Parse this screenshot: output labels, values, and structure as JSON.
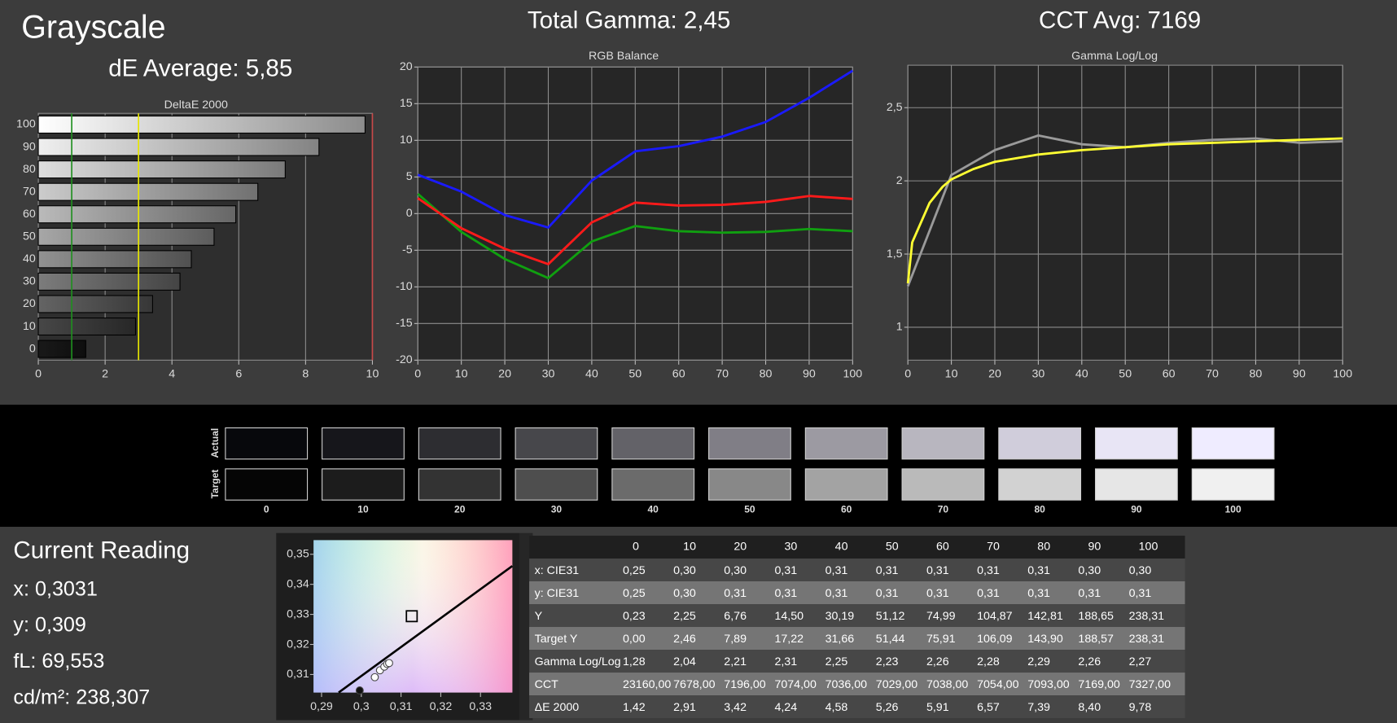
{
  "header": {
    "title": "Grayscale",
    "de_average": "dE Average: 5,85",
    "total_gamma": "Total Gamma: 2,45",
    "cct_avg": "CCT Avg: 7169"
  },
  "chart_data": [
    {
      "type": "hbar",
      "title": "DeltaE 2000",
      "categories": [
        0,
        10,
        20,
        30,
        40,
        50,
        60,
        70,
        80,
        90,
        100
      ],
      "values": [
        1.42,
        2.91,
        3.42,
        4.24,
        4.58,
        5.26,
        5.91,
        6.57,
        7.39,
        8.4,
        9.78
      ],
      "xlim": [
        0,
        10
      ],
      "xticks": [
        0,
        2,
        4,
        6,
        8,
        10
      ],
      "grid": true,
      "reference_lines": [
        {
          "value": 1,
          "color": "#1f8f1f"
        },
        {
          "value": 3,
          "color": "#e6e600"
        },
        {
          "value": 10,
          "color": "#c84848"
        }
      ]
    },
    {
      "type": "line",
      "title": "RGB Balance",
      "x": [
        0,
        10,
        20,
        30,
        40,
        50,
        60,
        70,
        80,
        90,
        100
      ],
      "xlim": [
        0,
        100
      ],
      "xticks": [
        0,
        10,
        20,
        30,
        40,
        50,
        60,
        70,
        80,
        90,
        100
      ],
      "ylim": [
        -20,
        20
      ],
      "yticks": [
        -20,
        -15,
        -10,
        -5,
        0,
        5,
        10,
        15,
        20
      ],
      "grid": true,
      "series": [
        {
          "color": "#10a010",
          "values": [
            2.7,
            -2.5,
            -6.2,
            -8.8,
            -3.8,
            -1.7,
            -2.4,
            -2.6,
            -2.5,
            -2.1,
            -2.4
          ]
        },
        {
          "color": "#ff1a1a",
          "values": [
            2.1,
            -2.0,
            -4.8,
            -6.9,
            -1.2,
            1.5,
            1.1,
            1.2,
            1.6,
            2.4,
            2.0
          ]
        },
        {
          "color": "#1a1aff",
          "values": [
            5.3,
            3.0,
            -0.2,
            -1.9,
            4.5,
            8.5,
            9.2,
            10.5,
            12.5,
            15.8,
            19.5
          ]
        }
      ]
    },
    {
      "type": "line",
      "title": "Gamma Log/Log",
      "xlim": [
        0,
        100
      ],
      "xticks": [
        0,
        10,
        20,
        30,
        40,
        50,
        60,
        70,
        80,
        90,
        100
      ],
      "ylim": [
        0.775,
        2.79
      ],
      "yticks": [
        1,
        {
          "value": 1.5,
          "label": "1,5"
        },
        2,
        {
          "value": 2.5,
          "label": "2,5"
        }
      ],
      "grid": true,
      "series": [
        {
          "color": "#9a9a9a",
          "x": [
            0,
            10,
            20,
            30,
            40,
            50,
            60,
            70,
            80,
            90,
            100
          ],
          "values": [
            1.28,
            2.04,
            2.21,
            2.31,
            2.25,
            2.23,
            2.26,
            2.28,
            2.29,
            2.26,
            2.27
          ]
        },
        {
          "color": "#ffff33",
          "x": [
            0,
            1,
            5,
            8,
            10,
            15,
            20,
            30,
            40,
            50,
            60,
            70,
            80,
            90,
            100
          ],
          "values": [
            1.3,
            1.58,
            1.85,
            1.96,
            2.01,
            2.08,
            2.13,
            2.18,
            2.21,
            2.23,
            2.25,
            2.26,
            2.27,
            2.28,
            2.29
          ]
        }
      ]
    },
    {
      "type": "scatter",
      "xlim": [
        0.288,
        0.338
      ],
      "xticks": [
        {
          "value": 0.29,
          "label": "0,29"
        },
        {
          "value": 0.3,
          "label": "0,3"
        },
        {
          "value": 0.31,
          "label": "0,31"
        },
        {
          "value": 0.32,
          "label": "0,32"
        },
        {
          "value": 0.33,
          "label": "0,33"
        }
      ],
      "ylim": [
        0.304,
        0.3547
      ],
      "yticks": [
        {
          "value": 0.31,
          "label": "0,31"
        },
        {
          "value": 0.32,
          "label": "0,32"
        },
        {
          "value": 0.33,
          "label": "0,33"
        },
        {
          "value": 0.34,
          "label": "0,34"
        },
        {
          "value": 0.35,
          "label": "0,35"
        }
      ],
      "series": [
        {
          "kind": "line",
          "color": "#000000",
          "x": [
            0.2943,
            0.338
          ],
          "values": [
            0.304,
            0.3461
          ]
        },
        {
          "kind": "square",
          "color": "#000000",
          "x": [
            0.3127
          ],
          "values": [
            0.3294
          ]
        },
        {
          "kind": "circle",
          "color": "#ffffff",
          "x": [
            0.3034,
            0.3047,
            0.3058,
            0.3065,
            0.307
          ],
          "values": [
            0.3091,
            0.3114,
            0.3126,
            0.3135,
            0.3138
          ]
        },
        {
          "kind": "circle",
          "color": "#111111",
          "x": [
            0.2996
          ],
          "values": [
            0.3047
          ]
        }
      ]
    }
  ],
  "swatches": {
    "row_labels": [
      "Actual",
      "Target"
    ],
    "labels": [
      0,
      10,
      20,
      30,
      40,
      50,
      60,
      70,
      80,
      90,
      100
    ],
    "actual_colors": [
      "#07080c",
      "#16161b",
      "#2d2d31",
      "#47474b",
      "#636268",
      "#807e86",
      "#9c9aa2",
      "#b8b6bf",
      "#d0cddb",
      "#e8e5f5",
      "#efecff"
    ],
    "target_colors": [
      "#050505",
      "#1c1c1c",
      "#333333",
      "#4e4e4e",
      "#6b6b6b",
      "#888888",
      "#a3a3a3",
      "#bababa",
      "#d2d2d2",
      "#e6e6e6",
      "#f0f0f0"
    ]
  },
  "current_reading": {
    "title": "Current Reading",
    "lines": [
      "x: 0,3031",
      "y: 0,309",
      "fL: 69,553",
      "cd/m²: 238,307"
    ]
  },
  "table": {
    "header": [
      "0",
      "10",
      "20",
      "30",
      "40",
      "50",
      "60",
      "70",
      "80",
      "90",
      "100"
    ],
    "rows": [
      {
        "label": "x: CIE31",
        "values": [
          "0,25",
          "0,30",
          "0,30",
          "0,31",
          "0,31",
          "0,31",
          "0,31",
          "0,31",
          "0,31",
          "0,30",
          "0,30"
        ]
      },
      {
        "label": "y: CIE31",
        "values": [
          "0,25",
          "0,30",
          "0,31",
          "0,31",
          "0,31",
          "0,31",
          "0,31",
          "0,31",
          "0,31",
          "0,31",
          "0,31"
        ]
      },
      {
        "label": "Y",
        "values": [
          "0,23",
          "2,25",
          "6,76",
          "14,50",
          "30,19",
          "51,12",
          "74,99",
          "104,87",
          "142,81",
          "188,65",
          "238,31"
        ]
      },
      {
        "label": "Target Y",
        "values": [
          "0,00",
          "2,46",
          "7,89",
          "17,22",
          "31,66",
          "51,44",
          "75,91",
          "106,09",
          "143,90",
          "188,57",
          "238,31"
        ]
      },
      {
        "label": "Gamma Log/Log",
        "values": [
          "1,28",
          "2,04",
          "2,21",
          "2,31",
          "2,25",
          "2,23",
          "2,26",
          "2,28",
          "2,29",
          "2,26",
          "2,27"
        ]
      },
      {
        "label": "CCT",
        "values": [
          "23160,00",
          "7678,00",
          "7196,00",
          "7074,00",
          "7036,00",
          "7029,00",
          "7038,00",
          "7054,00",
          "7093,00",
          "7169,00",
          "7327,00"
        ]
      },
      {
        "label": "ΔE 2000",
        "values": [
          "1,42",
          "2,91",
          "3,42",
          "4,24",
          "4,58",
          "5,26",
          "5,91",
          "6,57",
          "7,39",
          "8,40",
          "9,78"
        ]
      }
    ]
  }
}
